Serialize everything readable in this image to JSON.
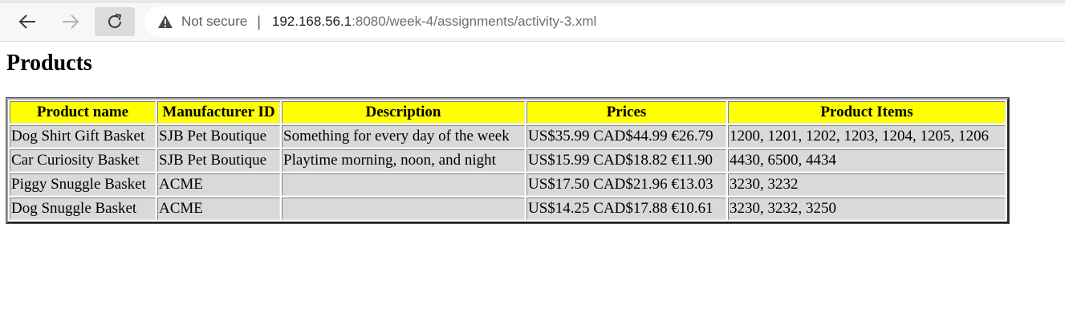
{
  "browser": {
    "security_text": "Not secure",
    "separator": "|",
    "url_host": "192.168.56.1",
    "url_rest": ":8080/week-4/assignments/activity-3.xml"
  },
  "page": {
    "title": "Products"
  },
  "table": {
    "headers": [
      "Product name",
      "Manufacturer ID",
      "Description",
      "Prices",
      "Product Items"
    ],
    "rows": [
      [
        "Dog Shirt Gift Basket",
        "SJB Pet Boutique",
        "Something for every day of the week",
        "US$35.99 CAD$44.99 €26.79",
        "1200, 1201, 1202, 1203, 1204, 1205, 1206"
      ],
      [
        "Car Curiosity Basket",
        "SJB Pet Boutique",
        "Playtime morning, noon, and night",
        "US$15.99 CAD$18.82 €11.90",
        "4430, 6500, 4434"
      ],
      [
        "Piggy Snuggle Basket",
        "ACME",
        "",
        "US$17.50 CAD$21.96 €13.03",
        "3230, 3232"
      ],
      [
        "Dog Snuggle Basket",
        "ACME",
        "",
        "US$14.25 CAD$17.88 €10.61",
        "3230, 3232, 3250"
      ]
    ]
  },
  "colors": {
    "header_bg": "#ffff00",
    "cell_bg": "#d9d9d9",
    "toolbar_bg": "#f7f7f7"
  },
  "icons": {
    "back": "arrow-left-icon",
    "forward": "arrow-right-icon",
    "reload": "reload-icon",
    "security": "warning-triangle-icon"
  }
}
